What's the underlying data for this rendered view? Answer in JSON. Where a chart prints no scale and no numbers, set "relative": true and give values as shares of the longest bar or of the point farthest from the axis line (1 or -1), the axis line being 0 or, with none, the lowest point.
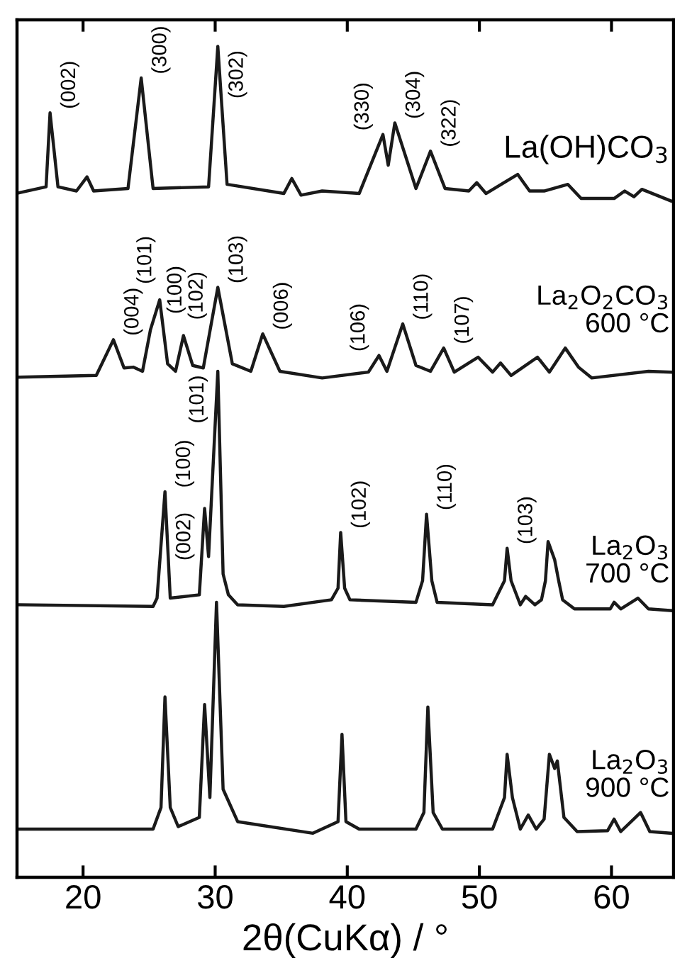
{
  "chart_data": {
    "type": "line",
    "relative": true,
    "xlabel": "2θ(CuKα) / °",
    "xlim": [
      15,
      64.7
    ],
    "xticks": [
      20,
      30,
      40,
      50,
      60
    ],
    "tick_labels": "x",
    "grid": false,
    "legend": false,
    "marker": "none",
    "line_style": "solid",
    "series": [
      {
        "name": "La(OH)CO$_{3}$",
        "color": "#1a1a1a",
        "x": [
          15.2,
          17.2,
          17.5,
          18.1,
          19.5,
          20.3,
          20.8,
          23.4,
          24.4,
          25.3,
          29.5,
          30.2,
          30.9,
          35.2,
          35.8,
          36.5,
          38.1,
          40.9,
          42.7,
          43.1,
          43.6,
          45.2,
          46.3,
          47.4,
          49.2,
          49.8,
          50.5,
          52.9,
          53.8,
          54.9,
          56.7,
          57.7,
          60.2,
          61.0,
          61.7,
          62.3,
          64.5
        ],
        "values": [
          0.824,
          0.831,
          0.92,
          0.831,
          0.826,
          0.843,
          0.826,
          0.829,
          0.962,
          0.829,
          0.831,
          1.0,
          0.834,
          0.823,
          0.841,
          0.821,
          0.826,
          0.823,
          0.894,
          0.857,
          0.908,
          0.829,
          0.874,
          0.829,
          0.826,
          0.836,
          0.823,
          0.846,
          0.826,
          0.826,
          0.834,
          0.817,
          0.817,
          0.826,
          0.819,
          0.828,
          0.814
        ]
      },
      {
        "name": "La$_{2}$O$_{2}$CO$_{3}$\n600 °C",
        "color": "#1a1a1a",
        "x": [
          15.2,
          21.0,
          22.3,
          23.1,
          23.8,
          24.5,
          25.1,
          25.8,
          26.4,
          27.0,
          27.6,
          28.3,
          29.1,
          30.2,
          31.3,
          32.7,
          33.6,
          34.9,
          38.1,
          41.6,
          42.4,
          43.0,
          44.2,
          45.2,
          46.3,
          47.3,
          48.1,
          49.9,
          51.0,
          51.6,
          52.4,
          54.4,
          55.3,
          56.5,
          57.5,
          58.5,
          62.8,
          64.5
        ],
        "values": [
          0.602,
          0.604,
          0.647,
          0.613,
          0.614,
          0.609,
          0.659,
          0.695,
          0.618,
          0.609,
          0.652,
          0.616,
          0.613,
          0.71,
          0.618,
          0.609,
          0.654,
          0.609,
          0.601,
          0.608,
          0.628,
          0.609,
          0.666,
          0.616,
          0.609,
          0.637,
          0.608,
          0.626,
          0.608,
          0.619,
          0.604,
          0.626,
          0.608,
          0.637,
          0.614,
          0.601,
          0.609,
          0.608
        ]
      },
      {
        "name": "La$_{2}$O$_{3}$\n700 °C",
        "color": "#1a1a1a",
        "x": [
          15.2,
          25.3,
          25.6,
          26.2,
          26.6,
          28.8,
          29.2,
          29.5,
          30.2,
          30.6,
          31.0,
          31.7,
          35.2,
          38.8,
          39.3,
          39.5,
          39.8,
          40.2,
          45.2,
          45.7,
          46.0,
          46.4,
          46.8,
          51.0,
          51.9,
          52.1,
          52.4,
          53.1,
          53.5,
          54.2,
          54.7,
          55.0,
          55.2,
          55.7,
          56.0,
          56.3,
          57.2,
          59.9,
          60.2,
          60.7,
          62.0,
          62.8,
          64.5
        ],
        "values": [
          0.328,
          0.326,
          0.336,
          0.464,
          0.336,
          0.34,
          0.444,
          0.386,
          0.609,
          0.365,
          0.34,
          0.328,
          0.326,
          0.334,
          0.348,
          0.415,
          0.348,
          0.334,
          0.331,
          0.357,
          0.437,
          0.357,
          0.331,
          0.328,
          0.357,
          0.396,
          0.357,
          0.328,
          0.338,
          0.328,
          0.334,
          0.357,
          0.404,
          0.382,
          0.357,
          0.334,
          0.323,
          0.323,
          0.331,
          0.323,
          0.336,
          0.323,
          0.321
        ]
      },
      {
        "name": "La$_{2}$O$_{3}$\n900 °C",
        "color": "#1a1a1a",
        "x": [
          15.2,
          25.3,
          25.9,
          26.2,
          26.6,
          27.2,
          28.8,
          29.2,
          29.6,
          30.1,
          30.6,
          31.7,
          37.4,
          39.3,
          39.6,
          39.9,
          40.9,
          45.2,
          45.8,
          46.1,
          46.5,
          47.2,
          51.0,
          51.9,
          52.1,
          52.5,
          53.1,
          53.7,
          54.3,
          54.9,
          55.3,
          55.7,
          55.9,
          56.4,
          57.4,
          59.7,
          60.2,
          60.7,
          62.2,
          62.9,
          64.5
        ],
        "values": [
          0.058,
          0.058,
          0.084,
          0.217,
          0.084,
          0.061,
          0.072,
          0.208,
          0.096,
          0.331,
          0.106,
          0.067,
          0.053,
          0.067,
          0.172,
          0.067,
          0.058,
          0.058,
          0.078,
          0.205,
          0.078,
          0.058,
          0.058,
          0.096,
          0.148,
          0.096,
          0.058,
          0.075,
          0.058,
          0.07,
          0.148,
          0.131,
          0.14,
          0.072,
          0.055,
          0.056,
          0.07,
          0.055,
          0.078,
          0.055,
          0.053
        ]
      }
    ],
    "annotations": [
      {
        "text": "(002)",
        "x": 17.5,
        "y": 0.92
      },
      {
        "text": "(300)",
        "x": 24.4,
        "y": 0.962
      },
      {
        "text": "(302)",
        "x": 30.2,
        "y": 1.0
      },
      {
        "text": "(330)",
        "x": 42.7,
        "y": 0.894
      },
      {
        "text": "(304)",
        "x": 43.6,
        "y": 0.908
      },
      {
        "text": "(322)",
        "x": 46.3,
        "y": 0.874
      },
      {
        "text": "(004)",
        "x": 22.3,
        "y": 0.647
      },
      {
        "text": "(100)",
        "x": 25.1,
        "y": 0.659
      },
      {
        "text": "(101)",
        "x": 25.8,
        "y": 0.695
      },
      {
        "text": "(102)",
        "x": 27.6,
        "y": 0.652
      },
      {
        "text": "(103)",
        "x": 30.2,
        "y": 0.71
      },
      {
        "text": "(006)",
        "x": 33.6,
        "y": 0.654
      },
      {
        "text": "(106)",
        "x": 42.4,
        "y": 0.628
      },
      {
        "text": "(110)",
        "x": 44.2,
        "y": 0.666
      },
      {
        "text": "(107)",
        "x": 47.3,
        "y": 0.637
      },
      {
        "text": "(100)",
        "x": 26.2,
        "y": 0.464
      },
      {
        "text": "(002)",
        "x": 29.2,
        "y": 0.444
      },
      {
        "text": "(101)",
        "x": 30.2,
        "y": 0.609
      },
      {
        "text": "(102)",
        "x": 39.5,
        "y": 0.415
      },
      {
        "text": "(110)",
        "x": 46.0,
        "y": 0.437
      },
      {
        "text": "(103)",
        "x": 52.1,
        "y": 0.396
      }
    ]
  }
}
